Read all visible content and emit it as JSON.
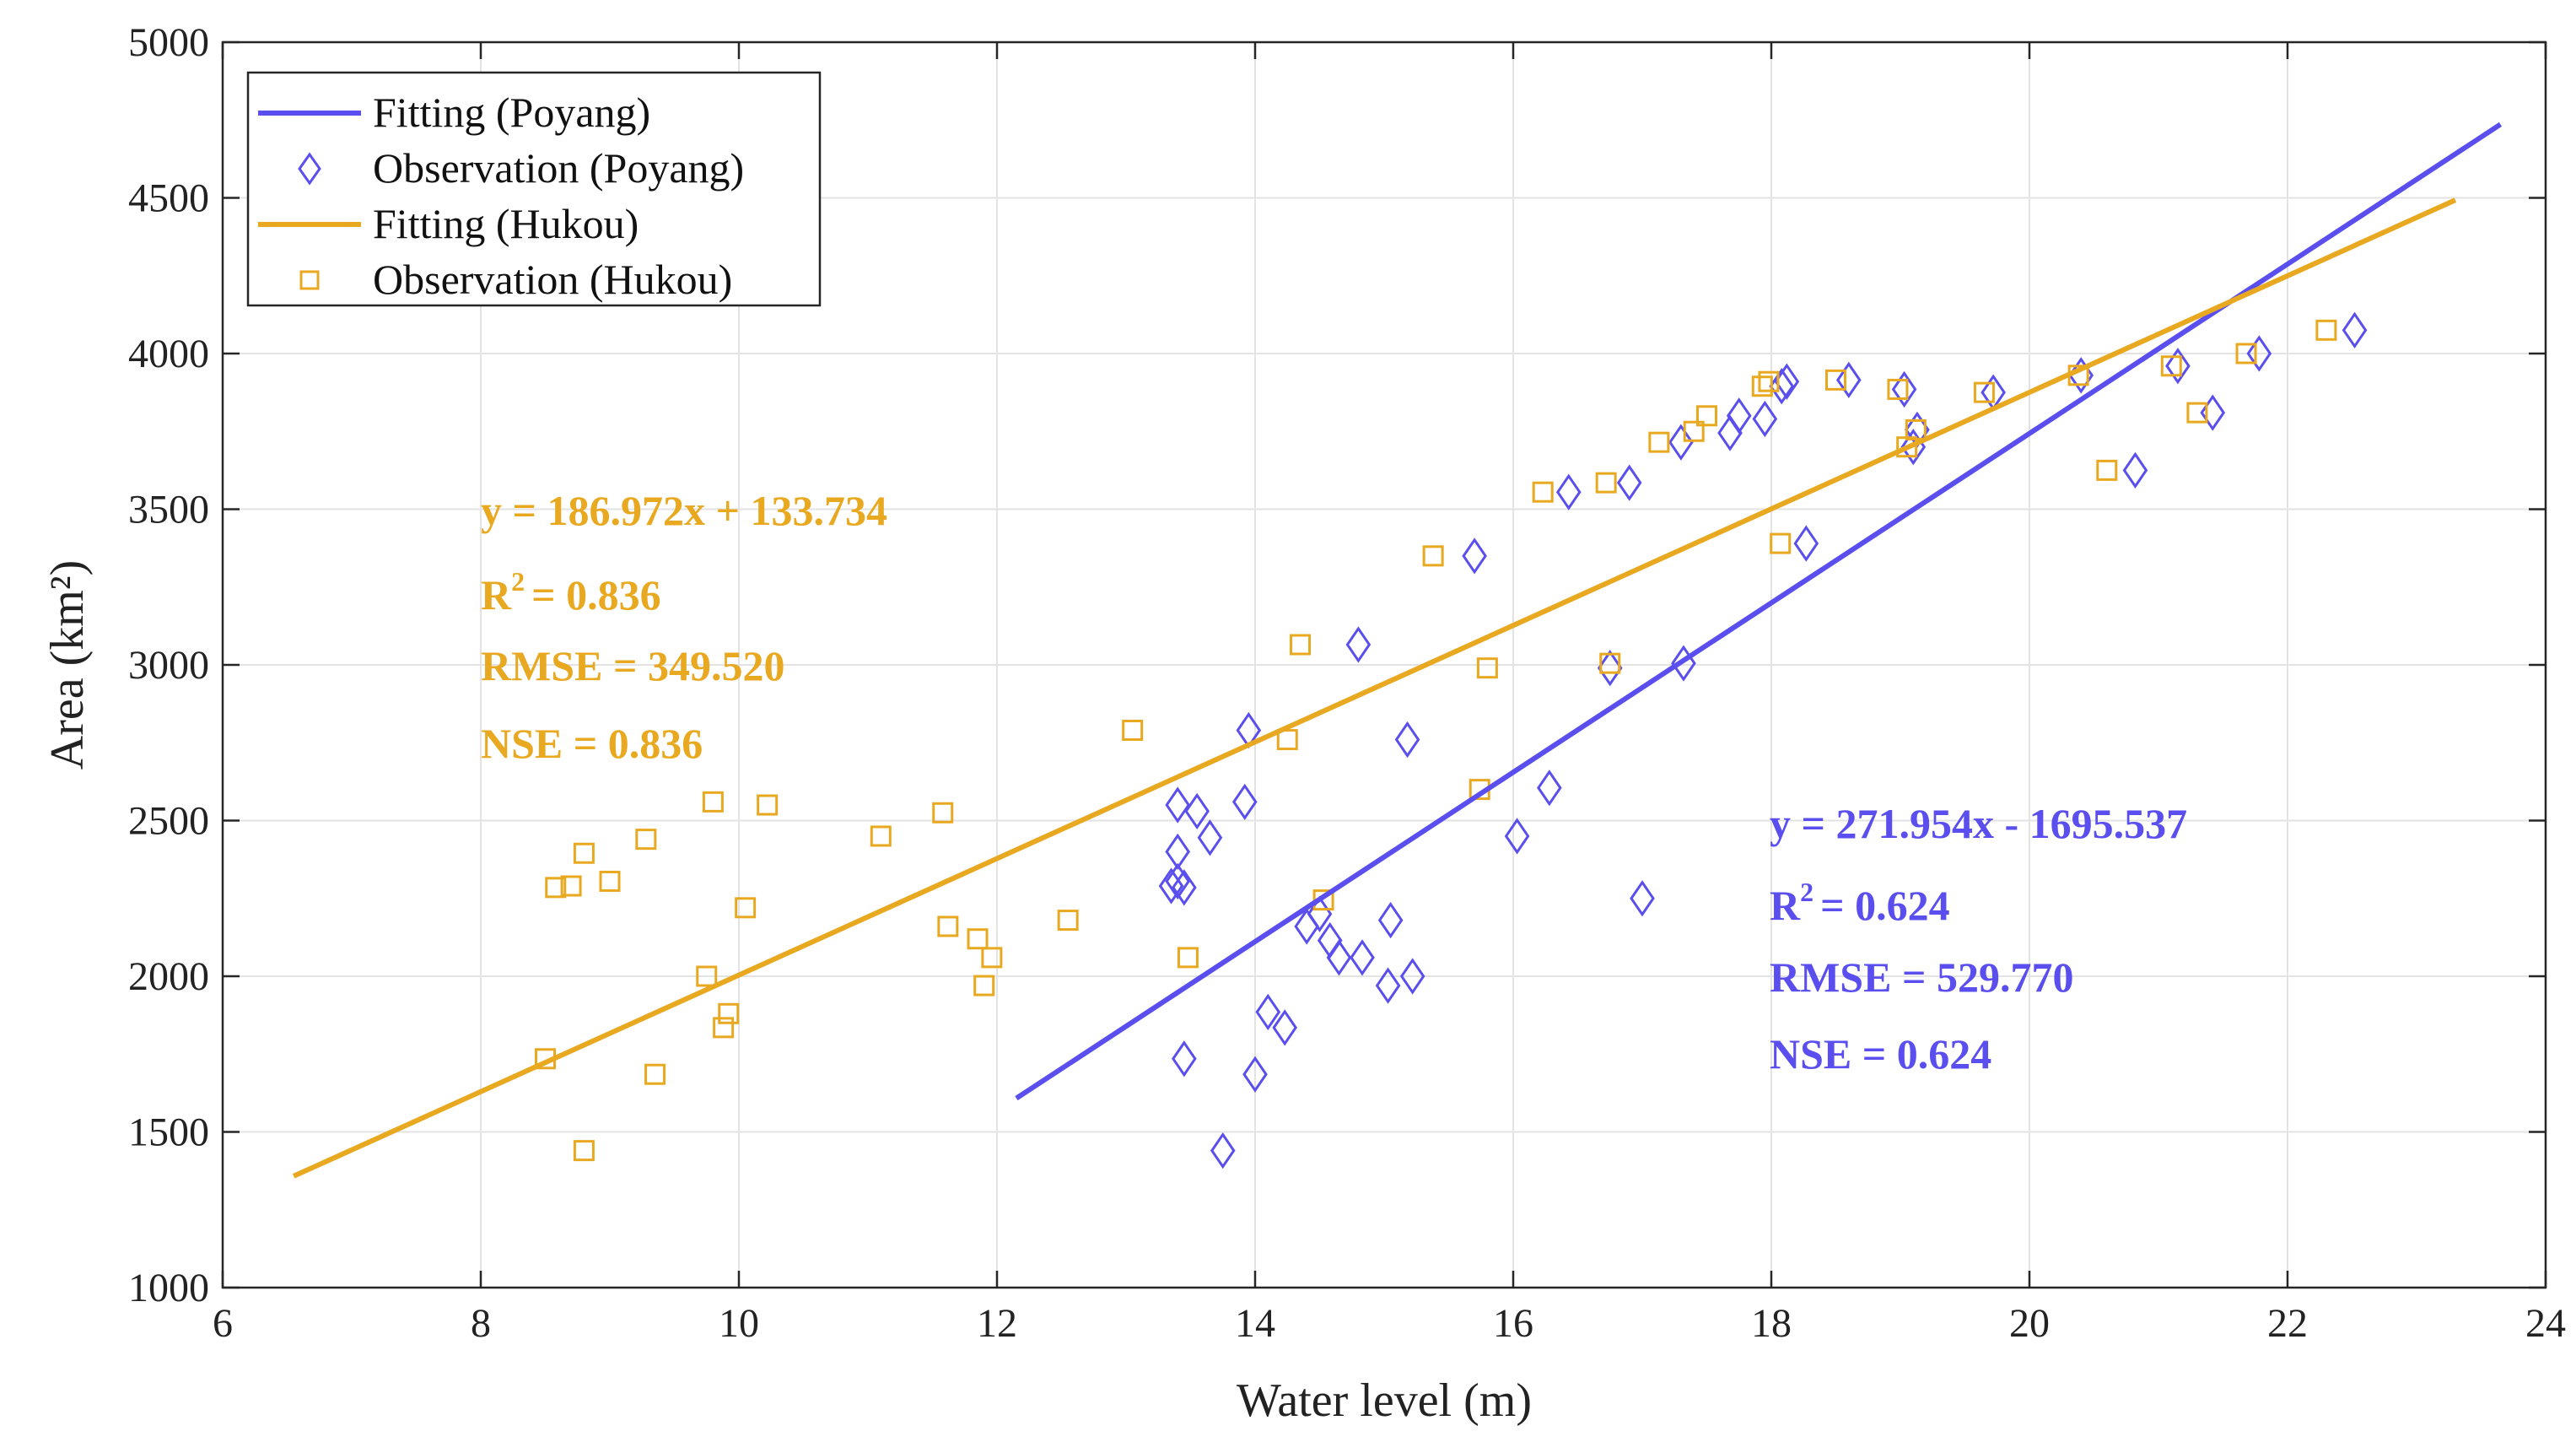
{
  "chart_data": {
    "type": "scatter",
    "xlabel": "Water level (m)",
    "ylabel": "Area (km²)",
    "xlim": [
      6,
      24
    ],
    "ylim": [
      1000,
      5000
    ],
    "xticks": [
      6,
      8,
      10,
      12,
      14,
      16,
      18,
      20,
      22,
      24
    ],
    "yticks": [
      1000,
      1500,
      2000,
      2500,
      3000,
      3500,
      4000,
      4500,
      5000
    ],
    "grid": true,
    "legend_position": "top-left",
    "series": [
      {
        "name": "Fitting (Poyang)",
        "kind": "line",
        "color": "#5a4fee",
        "x": [
          12.15,
          23.65
        ],
        "y": [
          1608,
          4736
        ]
      },
      {
        "name": "Observation (Poyang)",
        "kind": "scatter",
        "marker": "diamond",
        "color": "#5a4fee",
        "points": [
          [
            13.35,
            2290
          ],
          [
            13.4,
            2305
          ],
          [
            13.45,
            2285
          ],
          [
            13.4,
            2400
          ],
          [
            13.4,
            2550
          ],
          [
            13.55,
            2530
          ],
          [
            13.65,
            2445
          ],
          [
            13.45,
            1735
          ],
          [
            13.75,
            1440
          ],
          [
            13.92,
            2560
          ],
          [
            13.95,
            2790
          ],
          [
            14.0,
            1685
          ],
          [
            14.1,
            1885
          ],
          [
            14.23,
            1835
          ],
          [
            14.4,
            2160
          ],
          [
            14.5,
            2200
          ],
          [
            14.58,
            2115
          ],
          [
            14.65,
            2060
          ],
          [
            14.8,
            3065
          ],
          [
            14.83,
            2060
          ],
          [
            15.03,
            1970
          ],
          [
            15.05,
            2180
          ],
          [
            15.18,
            2760
          ],
          [
            15.22,
            2000
          ],
          [
            15.7,
            3350
          ],
          [
            16.03,
            2450
          ],
          [
            16.28,
            2605
          ],
          [
            16.43,
            3555
          ],
          [
            16.75,
            2990
          ],
          [
            16.9,
            3585
          ],
          [
            17.0,
            2250
          ],
          [
            17.3,
            3715
          ],
          [
            17.32,
            3005
          ],
          [
            17.68,
            3745
          ],
          [
            17.75,
            3800
          ],
          [
            17.95,
            3790
          ],
          [
            18.08,
            3895
          ],
          [
            18.12,
            3910
          ],
          [
            18.27,
            3390
          ],
          [
            18.6,
            3915
          ],
          [
            19.03,
            3885
          ],
          [
            19.1,
            3700
          ],
          [
            19.13,
            3755
          ],
          [
            19.72,
            3875
          ],
          [
            20.4,
            3930
          ],
          [
            20.82,
            3625
          ],
          [
            21.15,
            3960
          ],
          [
            21.42,
            3810
          ],
          [
            21.78,
            4000
          ],
          [
            22.52,
            4075
          ]
        ]
      },
      {
        "name": "Fitting (Hukou)",
        "kind": "line",
        "color": "#e8a921",
        "x": [
          6.55,
          23.3
        ],
        "y": [
          1358,
          4493
        ]
      },
      {
        "name": "Observation (Hukou)",
        "kind": "scatter",
        "marker": "square",
        "color": "#e8a921",
        "points": [
          [
            8.5,
            1735
          ],
          [
            8.58,
            2285
          ],
          [
            8.7,
            2290
          ],
          [
            8.8,
            2395
          ],
          [
            8.8,
            1440
          ],
          [
            9.0,
            2305
          ],
          [
            9.28,
            2440
          ],
          [
            9.35,
            1685
          ],
          [
            9.75,
            2000
          ],
          [
            9.8,
            2560
          ],
          [
            9.88,
            1835
          ],
          [
            9.92,
            1880
          ],
          [
            10.05,
            2220
          ],
          [
            10.22,
            2550
          ],
          [
            11.1,
            2450
          ],
          [
            11.58,
            2525
          ],
          [
            11.62,
            2160
          ],
          [
            11.85,
            2120
          ],
          [
            11.9,
            1970
          ],
          [
            11.96,
            2060
          ],
          [
            12.55,
            2180
          ],
          [
            13.05,
            2790
          ],
          [
            13.48,
            2060
          ],
          [
            14.25,
            2760
          ],
          [
            14.35,
            3065
          ],
          [
            14.53,
            2245
          ],
          [
            15.38,
            3350
          ],
          [
            15.74,
            2600
          ],
          [
            15.8,
            2990
          ],
          [
            16.23,
            3555
          ],
          [
            16.72,
            3585
          ],
          [
            16.75,
            3005
          ],
          [
            17.13,
            3715
          ],
          [
            17.4,
            3750
          ],
          [
            17.5,
            3800
          ],
          [
            17.93,
            3895
          ],
          [
            17.98,
            3910
          ],
          [
            18.07,
            3390
          ],
          [
            18.5,
            3915
          ],
          [
            18.98,
            3885
          ],
          [
            19.05,
            3700
          ],
          [
            19.12,
            3755
          ],
          [
            19.65,
            3875
          ],
          [
            20.38,
            3930
          ],
          [
            20.6,
            3625
          ],
          [
            21.1,
            3960
          ],
          [
            21.3,
            3810
          ],
          [
            21.68,
            4000
          ],
          [
            22.3,
            4075
          ]
        ]
      }
    ],
    "annotations": {
      "hukou": {
        "equation": "y = 186.972x + 133.734",
        "r2_label": "R",
        "r2_value": "= 0.836",
        "rmse": "RMSE = 349.520",
        "nse": "NSE = 0.836"
      },
      "poyang": {
        "equation": "y = 271.954x - 1695.537",
        "r2_label": "R",
        "r2_value": "= 0.624",
        "rmse": "RMSE = 529.770",
        "nse": "NSE = 0.624"
      }
    }
  }
}
